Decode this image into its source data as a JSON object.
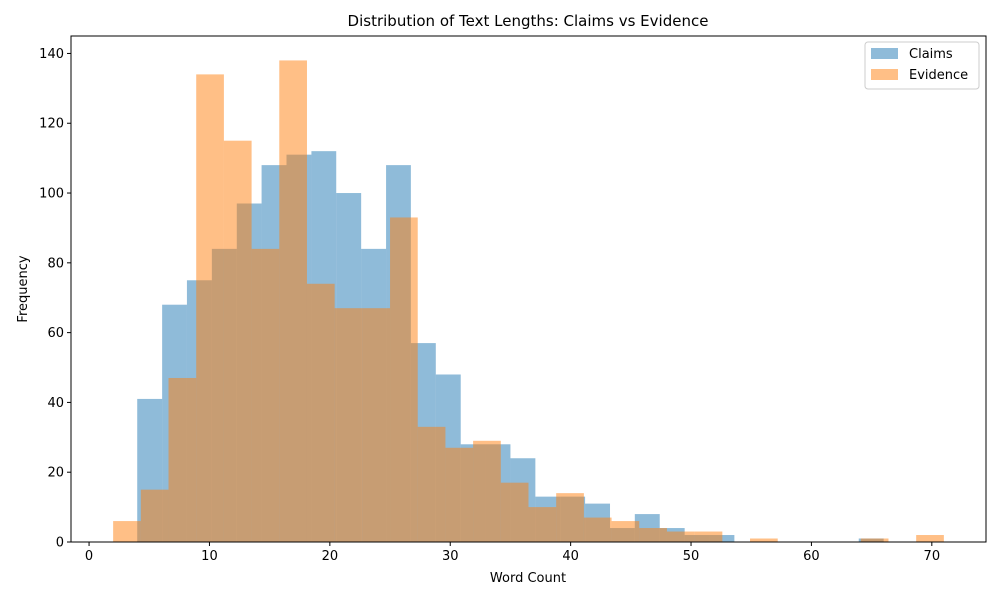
{
  "chart_data": {
    "type": "histogram",
    "title": "Distribution of Text Lengths: Claims vs Evidence",
    "xlabel": "Word Count",
    "ylabel": "Frequency",
    "xlim": [
      -1.5,
      74.5
    ],
    "ylim": [
      0,
      145
    ],
    "xticks": [
      0,
      10,
      20,
      30,
      40,
      50,
      60,
      70
    ],
    "yticks": [
      0,
      20,
      40,
      60,
      80,
      100,
      120,
      140
    ],
    "grid": false,
    "legend_position": "top-right",
    "series": [
      {
        "name": "Claims",
        "color": "#1f77b4",
        "opacity": 0.5,
        "bins": [
          {
            "x0": 4.0,
            "x1": 6.07,
            "count": 41
          },
          {
            "x0": 6.07,
            "x1": 8.13,
            "count": 68
          },
          {
            "x0": 8.13,
            "x1": 10.2,
            "count": 75
          },
          {
            "x0": 10.2,
            "x1": 12.27,
            "count": 84
          },
          {
            "x0": 12.27,
            "x1": 14.33,
            "count": 97
          },
          {
            "x0": 14.33,
            "x1": 16.4,
            "count": 108
          },
          {
            "x0": 16.4,
            "x1": 18.47,
            "count": 111
          },
          {
            "x0": 18.47,
            "x1": 20.53,
            "count": 112
          },
          {
            "x0": 20.53,
            "x1": 22.6,
            "count": 100
          },
          {
            "x0": 22.6,
            "x1": 24.67,
            "count": 84
          },
          {
            "x0": 24.67,
            "x1": 26.73,
            "count": 108
          },
          {
            "x0": 26.73,
            "x1": 28.8,
            "count": 57
          },
          {
            "x0": 28.8,
            "x1": 30.87,
            "count": 48
          },
          {
            "x0": 30.87,
            "x1": 32.93,
            "count": 28
          },
          {
            "x0": 32.93,
            "x1": 35.0,
            "count": 28
          },
          {
            "x0": 35.0,
            "x1": 37.07,
            "count": 24
          },
          {
            "x0": 37.07,
            "x1": 39.13,
            "count": 13
          },
          {
            "x0": 39.13,
            "x1": 41.2,
            "count": 13
          },
          {
            "x0": 41.2,
            "x1": 43.27,
            "count": 11
          },
          {
            "x0": 43.27,
            "x1": 45.33,
            "count": 4
          },
          {
            "x0": 45.33,
            "x1": 47.4,
            "count": 8
          },
          {
            "x0": 47.4,
            "x1": 49.47,
            "count": 4
          },
          {
            "x0": 49.47,
            "x1": 51.53,
            "count": 2
          },
          {
            "x0": 51.53,
            "x1": 53.6,
            "count": 2
          },
          {
            "x0": 53.6,
            "x1": 55.67,
            "count": 0
          },
          {
            "x0": 55.67,
            "x1": 57.73,
            "count": 0
          },
          {
            "x0": 57.73,
            "x1": 59.8,
            "count": 0
          },
          {
            "x0": 59.8,
            "x1": 61.87,
            "count": 0
          },
          {
            "x0": 61.87,
            "x1": 63.93,
            "count": 0
          },
          {
            "x0": 63.93,
            "x1": 66.0,
            "count": 1
          }
        ]
      },
      {
        "name": "Evidence",
        "color": "#ff7f0e",
        "opacity": 0.5,
        "bins": [
          {
            "x0": 2.0,
            "x1": 4.3,
            "count": 6
          },
          {
            "x0": 4.3,
            "x1": 6.6,
            "count": 15
          },
          {
            "x0": 6.6,
            "x1": 8.9,
            "count": 47
          },
          {
            "x0": 8.9,
            "x1": 11.2,
            "count": 134
          },
          {
            "x0": 11.2,
            "x1": 13.5,
            "count": 115
          },
          {
            "x0": 13.5,
            "x1": 15.8,
            "count": 84
          },
          {
            "x0": 15.8,
            "x1": 18.1,
            "count": 138
          },
          {
            "x0": 18.1,
            "x1": 20.4,
            "count": 74
          },
          {
            "x0": 20.4,
            "x1": 22.7,
            "count": 67
          },
          {
            "x0": 22.7,
            "x1": 25.0,
            "count": 67
          },
          {
            "x0": 25.0,
            "x1": 27.3,
            "count": 93
          },
          {
            "x0": 27.3,
            "x1": 29.6,
            "count": 33
          },
          {
            "x0": 29.6,
            "x1": 31.9,
            "count": 27
          },
          {
            "x0": 31.9,
            "x1": 34.2,
            "count": 29
          },
          {
            "x0": 34.2,
            "x1": 36.5,
            "count": 17
          },
          {
            "x0": 36.5,
            "x1": 38.8,
            "count": 10
          },
          {
            "x0": 38.8,
            "x1": 41.1,
            "count": 14
          },
          {
            "x0": 41.1,
            "x1": 43.4,
            "count": 7
          },
          {
            "x0": 43.4,
            "x1": 45.7,
            "count": 6
          },
          {
            "x0": 45.7,
            "x1": 48.0,
            "count": 4
          },
          {
            "x0": 48.0,
            "x1": 50.3,
            "count": 3
          },
          {
            "x0": 50.3,
            "x1": 52.6,
            "count": 3
          },
          {
            "x0": 52.6,
            "x1": 54.9,
            "count": 0
          },
          {
            "x0": 54.9,
            "x1": 57.2,
            "count": 1
          },
          {
            "x0": 57.2,
            "x1": 59.5,
            "count": 0
          },
          {
            "x0": 59.5,
            "x1": 61.8,
            "count": 0
          },
          {
            "x0": 61.8,
            "x1": 64.1,
            "count": 0
          },
          {
            "x0": 64.1,
            "x1": 66.4,
            "count": 1
          },
          {
            "x0": 66.4,
            "x1": 68.7,
            "count": 0
          },
          {
            "x0": 68.7,
            "x1": 71.0,
            "count": 2
          }
        ]
      }
    ]
  }
}
